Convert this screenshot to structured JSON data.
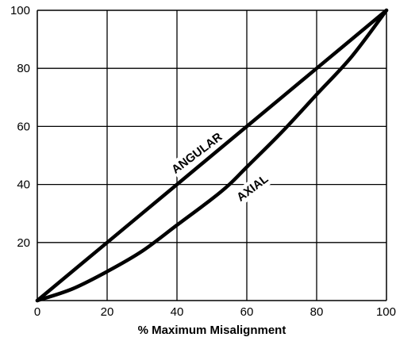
{
  "chart_data": {
    "type": "line",
    "title": "",
    "xlabel": "% Maximum Misalignment",
    "ylabel": "",
    "xlim": [
      0,
      100
    ],
    "ylim": [
      0,
      100
    ],
    "x_ticks": [
      "0",
      "20",
      "40",
      "60",
      "80",
      "100"
    ],
    "y_ticks": [
      "20",
      "40",
      "60",
      "80",
      "100"
    ],
    "grid": true,
    "legend": "none",
    "series": [
      {
        "name": "ANGULAR",
        "x": [
          0,
          20,
          40,
          60,
          80,
          100
        ],
        "y": [
          0,
          20,
          40,
          60,
          80,
          100
        ]
      },
      {
        "name": "AXIAL",
        "x": [
          0,
          10,
          20,
          30,
          40,
          50,
          55,
          60,
          70,
          80,
          90,
          100
        ],
        "y": [
          0,
          4,
          10,
          17,
          26,
          35,
          40,
          46,
          58,
          71,
          84,
          100
        ]
      }
    ]
  }
}
